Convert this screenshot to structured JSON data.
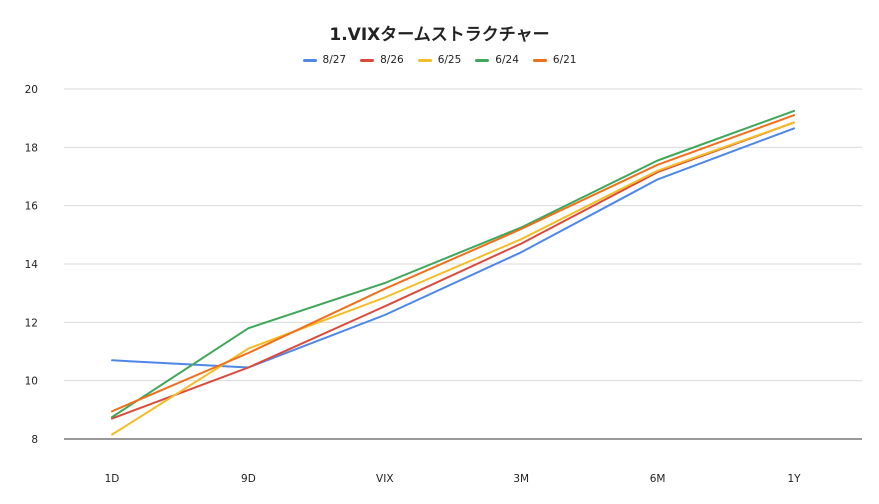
{
  "chart_data": {
    "type": "line",
    "title": "1.VIXタームストラクチャー",
    "xlabel": "",
    "ylabel": "",
    "categories": [
      "1D",
      "9D",
      "VIX",
      "3M",
      "6M",
      "1Y"
    ],
    "ylim": [
      8,
      20
    ],
    "yticks": [
      "8",
      "10",
      "12",
      "14",
      "16",
      "18",
      "20"
    ],
    "grid": true,
    "legend_position": "top",
    "series": [
      {
        "name": "8/27",
        "color": "#4e87e8",
        "values": [
          10.7,
          10.45,
          12.25,
          14.4,
          16.9,
          18.65
        ]
      },
      {
        "name": "8/26",
        "color": "#db4a3d",
        "values": [
          8.7,
          10.45,
          12.55,
          14.7,
          17.15,
          18.85
        ]
      },
      {
        "name": "6/25",
        "color": "#f4bd27",
        "values": [
          8.15,
          11.1,
          12.85,
          14.85,
          17.2,
          18.85
        ]
      },
      {
        "name": "6/24",
        "color": "#3fa75a",
        "values": [
          8.75,
          11.8,
          13.35,
          15.25,
          17.55,
          19.25
        ]
      },
      {
        "name": "6/21",
        "color": "#f06f1c",
        "values": [
          8.95,
          10.95,
          13.15,
          15.2,
          17.4,
          19.1
        ]
      }
    ]
  }
}
